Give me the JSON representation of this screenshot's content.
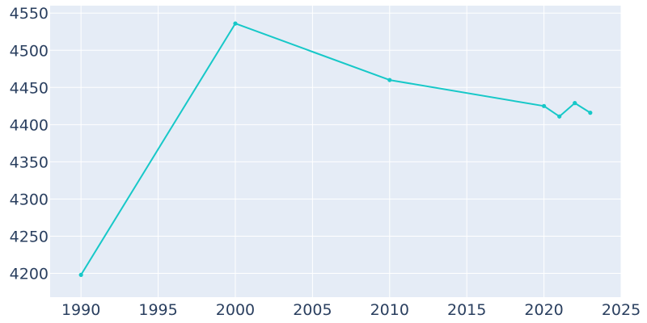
{
  "chart_data": {
    "type": "line",
    "title": "",
    "xlabel": "",
    "ylabel": "",
    "x": [
      1990,
      2000,
      2010,
      2020,
      2021,
      2022,
      2023
    ],
    "series": [
      {
        "values": [
          4198,
          4536,
          4460,
          4425,
          4411,
          4429,
          4416
        ]
      }
    ],
    "xlim": [
      1988,
      2025
    ],
    "ylim": [
      4168,
      4560
    ],
    "xticks": [
      1990,
      1995,
      2000,
      2005,
      2010,
      2015,
      2020,
      2025
    ],
    "yticks": [
      4200,
      4250,
      4300,
      4350,
      4400,
      4450,
      4500,
      4550
    ],
    "grid": true,
    "colors": {
      "plot_background": "#e5ecf6",
      "gridline": "#ffffff",
      "line": "#17c8c8",
      "tick_text": "#2a3f5f"
    }
  }
}
